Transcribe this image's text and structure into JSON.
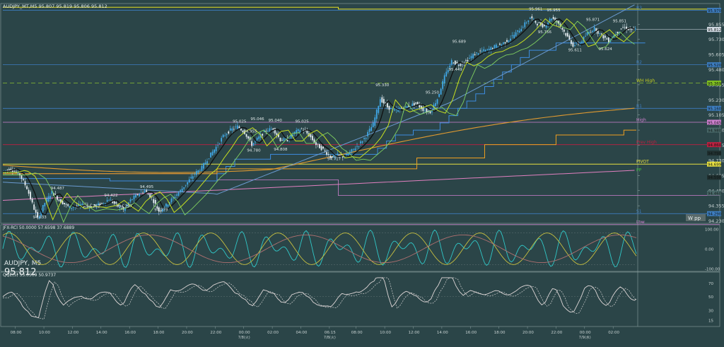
{
  "chart_data": {
    "type": "candlestick",
    "header_text": "AUDJPY_MT,M5  95.807 95.819 95.806 95.812",
    "symbol_label": "AUDJPY, M5",
    "last_price_label": "95.812",
    "price_ticks": [
      "95.855",
      "95.730",
      "95.605",
      "95.480",
      "95.355",
      "95.230",
      "95.105",
      "94.980",
      "94.855",
      "94.730",
      "94.605",
      "94.480",
      "94.355",
      "94.230"
    ],
    "price_ylim": [
      94.21,
      96.02
    ],
    "last_price_value": 95.812,
    "level_tags": [
      {
        "name": "R3",
        "value": 95.97,
        "color": "#3d7dc0"
      },
      {
        "name": "R2",
        "value": 95.52,
        "color": "#3d7dc0"
      },
      {
        "name": "WH High",
        "value": 95.369,
        "color": "#c8d020"
      },
      {
        "name": "R1",
        "value": 95.16,
        "color": "#3d7dc0"
      },
      {
        "name": "High",
        "value": 95.045,
        "color": "#d080d0"
      },
      {
        "name": "Prev High",
        "value": 94.86,
        "color": "#c02040"
      },
      {
        "name": "PIVOT",
        "value": 94.699,
        "color": "#e8e040"
      },
      {
        "name": "PP",
        "value": 94.63,
        "color": "#40c040"
      },
      {
        "name": "S1",
        "value": 94.29,
        "color": "#3d7dc0"
      },
      {
        "name": "Low",
        "value": 94.2,
        "color": "#d080d0"
      }
    ],
    "right_tags": [
      "95.970",
      "95.812",
      "95.520",
      "95.369",
      "95.160",
      "95.045",
      "94.980",
      "94.860",
      "94.790",
      "94.699",
      "94.590",
      "94.460",
      "94.290"
    ],
    "swing_labels": [
      {
        "text": "94.233",
        "x": 20,
        "y": 94.24
      },
      {
        "text": "94.487",
        "x": 30,
        "y": 94.48
      },
      {
        "text": "94.362",
        "x": 50,
        "y": 94.33
      },
      {
        "text": "94.422",
        "x": 60,
        "y": 94.42
      },
      {
        "text": "94.297",
        "x": 68,
        "y": 94.33
      },
      {
        "text": "94.495",
        "x": 80,
        "y": 94.49
      },
      {
        "text": "94.279",
        "x": 88,
        "y": 94.3
      },
      {
        "text": "95.025",
        "x": 132,
        "y": 95.03
      },
      {
        "text": "95.046",
        "x": 142,
        "y": 95.05
      },
      {
        "text": "94.955",
        "x": 138,
        "y": 94.95
      },
      {
        "text": "94.780",
        "x": 140,
        "y": 94.79
      },
      {
        "text": "95.040",
        "x": 152,
        "y": 95.04
      },
      {
        "text": "94.808",
        "x": 155,
        "y": 94.8
      },
      {
        "text": "95.025",
        "x": 167,
        "y": 95.03
      },
      {
        "text": "94.717",
        "x": 185,
        "y": 94.72
      },
      {
        "text": "95.330",
        "x": 212,
        "y": 95.33
      },
      {
        "text": "95.250",
        "x": 240,
        "y": 95.27
      },
      {
        "text": "95.689",
        "x": 255,
        "y": 95.69
      },
      {
        "text": "95.449",
        "x": 253,
        "y": 95.46
      },
      {
        "text": "95.961",
        "x": 298,
        "y": 95.96
      },
      {
        "text": "95.955",
        "x": 308,
        "y": 95.95
      },
      {
        "text": "95.756",
        "x": 303,
        "y": 95.77
      },
      {
        "text": "95.871",
        "x": 330,
        "y": 95.87
      },
      {
        "text": "95.611",
        "x": 320,
        "y": 95.62
      },
      {
        "text": "95.851",
        "x": 345,
        "y": 95.86
      },
      {
        "text": "95.624",
        "x": 337,
        "y": 95.63
      }
    ],
    "w_pp_label": "W pp",
    "rci_header": "JFX-RCI 50.0000 57.6598 37.6889",
    "rci_ticks": [
      "100.00",
      "0.00",
      "-100.00"
    ],
    "qqe_header": "QQE(5) 53.0509 50.9737",
    "qqe_ticks": [
      "70",
      "50",
      "30",
      "15"
    ],
    "time_labels": [
      {
        "text": "08:00",
        "x": 7
      },
      {
        "text": "10:00",
        "x": 23
      },
      {
        "text": "12:00",
        "x": 39
      },
      {
        "text": "14:00",
        "x": 55
      },
      {
        "text": "16:00",
        "x": 71
      },
      {
        "text": "18:00",
        "x": 87
      },
      {
        "text": "20:00",
        "x": 103
      },
      {
        "text": "22:00",
        "x": 119
      },
      {
        "text": "00:00",
        "x": 135
      },
      {
        "text": "02:00",
        "x": 151
      },
      {
        "text": "04:00",
        "x": 167
      },
      {
        "text": "06:15",
        "x": 183
      },
      {
        "text": "08:00",
        "x": 198
      },
      {
        "text": "10:00",
        "x": 214
      },
      {
        "text": "12:00",
        "x": 230
      },
      {
        "text": "14:00",
        "x": 246
      },
      {
        "text": "16:00",
        "x": 262
      },
      {
        "text": "18:00",
        "x": 278
      },
      {
        "text": "20:00",
        "x": 294
      },
      {
        "text": "22:00",
        "x": 310
      },
      {
        "text": "00:00",
        "x": 326
      },
      {
        "text": "02:00",
        "x": 342
      }
    ],
    "date_labels": [
      {
        "text": "7/8(火)",
        "x": 135
      },
      {
        "text": "7/8(火)",
        "x": 183
      },
      {
        "text": "7/9(水)",
        "x": 326
      }
    ],
    "x_range": [
      0,
      355
    ],
    "key_points": [
      [
        0,
        94.64
      ],
      [
        5,
        94.66
      ],
      [
        10,
        94.61
      ],
      [
        14,
        94.5
      ],
      [
        18,
        94.33
      ],
      [
        20,
        94.25
      ],
      [
        24,
        94.38
      ],
      [
        28,
        94.47
      ],
      [
        32,
        94.4
      ],
      [
        38,
        94.34
      ],
      [
        44,
        94.36
      ],
      [
        50,
        94.35
      ],
      [
        56,
        94.37
      ],
      [
        60,
        94.41
      ],
      [
        64,
        94.36
      ],
      [
        68,
        94.32
      ],
      [
        72,
        94.4
      ],
      [
        76,
        94.45
      ],
      [
        80,
        94.48
      ],
      [
        84,
        94.42
      ],
      [
        88,
        94.31
      ],
      [
        92,
        94.36
      ],
      [
        96,
        94.42
      ],
      [
        100,
        94.48
      ],
      [
        104,
        94.55
      ],
      [
        108,
        94.62
      ],
      [
        112,
        94.67
      ],
      [
        116,
        94.76
      ],
      [
        120,
        94.84
      ],
      [
        124,
        94.93
      ],
      [
        128,
        94.98
      ],
      [
        132,
        95.01
      ],
      [
        136,
        94.96
      ],
      [
        140,
        94.86
      ],
      [
        144,
        94.92
      ],
      [
        148,
        94.98
      ],
      [
        152,
        94.99
      ],
      [
        156,
        94.9
      ],
      [
        160,
        94.9
      ],
      [
        164,
        94.96
      ],
      [
        168,
        94.99
      ],
      [
        172,
        94.94
      ],
      [
        176,
        94.86
      ],
      [
        180,
        94.82
      ],
      [
        184,
        94.76
      ],
      [
        188,
        94.77
      ],
      [
        192,
        94.76
      ],
      [
        196,
        94.81
      ],
      [
        200,
        94.86
      ],
      [
        204,
        94.93
      ],
      [
        208,
        95.03
      ],
      [
        212,
        95.24
      ],
      [
        216,
        95.17
      ],
      [
        220,
        95.14
      ],
      [
        224,
        95.16
      ],
      [
        228,
        95.18
      ],
      [
        232,
        95.2
      ],
      [
        236,
        95.15
      ],
      [
        240,
        95.13
      ],
      [
        244,
        95.24
      ],
      [
        248,
        95.42
      ],
      [
        252,
        95.55
      ],
      [
        256,
        95.52
      ],
      [
        260,
        95.55
      ],
      [
        264,
        95.6
      ],
      [
        268,
        95.63
      ],
      [
        272,
        95.64
      ],
      [
        276,
        95.67
      ],
      [
        280,
        95.69
      ],
      [
        284,
        95.73
      ],
      [
        288,
        95.78
      ],
      [
        292,
        95.84
      ],
      [
        296,
        95.91
      ],
      [
        300,
        95.86
      ],
      [
        304,
        95.84
      ],
      [
        308,
        95.91
      ],
      [
        312,
        95.86
      ],
      [
        316,
        95.77
      ],
      [
        320,
        95.68
      ],
      [
        324,
        95.7
      ],
      [
        328,
        95.78
      ],
      [
        332,
        95.82
      ],
      [
        336,
        95.76
      ],
      [
        340,
        95.72
      ],
      [
        344,
        95.78
      ],
      [
        348,
        95.83
      ],
      [
        352,
        95.81
      ],
      [
        355,
        95.812
      ]
    ]
  }
}
